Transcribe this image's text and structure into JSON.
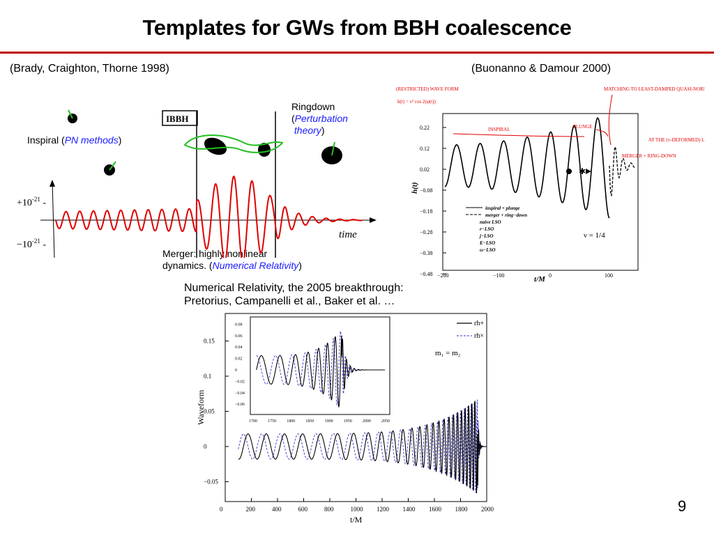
{
  "slide": {
    "title": "Templates for GWs from BBH coalescence",
    "page_number": "9",
    "accent_color": "#c00000"
  },
  "left_panel": {
    "citation": "(Brady, Craighton, Thorne 1998)",
    "inspiral_prefix": "Inspiral (",
    "inspiral_method": "PN methods",
    "ringdown_line1": "Ringdown",
    "ringdown_method_line1": "Perturbation",
    "ringdown_method_line2": "theory",
    "merger_line1": "Merger: highly nonlinear",
    "merger_line2_prefix": "dynamics. (",
    "merger_method": "Numerical Relativity",
    "box_label": "IBBH",
    "y_plus_label": "+10",
    "y_plus_exp": "-21",
    "y_minus_label": "−10",
    "y_minus_exp": "-21",
    "x_label": "time",
    "method_color": "#1a1aff",
    "wave_color": "#e00000"
  },
  "right_panel": {
    "citation": "(Buonanno & Damour 2000)",
    "handwritten_notes": [
      "(RESTRICTED) WAVE FORM",
      "INSPIRAL",
      "PLUNGE",
      "MATCHING TO LEAST-DAMPED QUASI-NORMAL-MODE OF A KERR BH",
      "AT THE (v-DEFORMED) LIGHT-RING",
      "MERGER + RING-DOWN"
    ],
    "ylabel": "h(t)",
    "xlabel": "t/M",
    "yticks": [
      "0.22",
      "0.12",
      "0.02",
      "−0.08",
      "−0.18",
      "−0.28",
      "−0.38",
      "−0.48"
    ],
    "xticks": [
      "−200",
      "−100",
      "0",
      "100"
    ],
    "legend": [
      "inspiral + plunge",
      "merger + ring−down",
      "naive LSO",
      "r−LSO",
      "j−LSO",
      "E−LSO",
      "ω−LSO"
    ],
    "nu_label": "ν = 1/4",
    "annotation_color": "#e00000"
  },
  "bottom_panel": {
    "caption_line1": "Numerical Relativity, the 2005 breakthrough:",
    "caption_line2": "Pretorius, Campanelli et al., Baker et al. …",
    "ylabel": "Waveform",
    "xlabel": "t/M",
    "yticks": [
      "0.15",
      "0.1",
      "0.05",
      "0",
      "−0.05"
    ],
    "xticks": [
      "0",
      "200",
      "400",
      "600",
      "800",
      "1000",
      "1200",
      "1400",
      "1600",
      "1800",
      "2000"
    ],
    "legend": [
      "rh+",
      "rh×"
    ],
    "mass_label": "m₁ = m₂",
    "inset_yticks": [
      "0.08",
      "0.06",
      "0.04",
      "0.02",
      "0",
      "−0.02",
      "−0.04",
      "−0.06"
    ],
    "inset_xticks": [
      "1700",
      "1750",
      "1800",
      "1850",
      "1900",
      "1950",
      "2000",
      "2050"
    ],
    "plus_color": "#000000",
    "cross_color": "#3333cc"
  }
}
